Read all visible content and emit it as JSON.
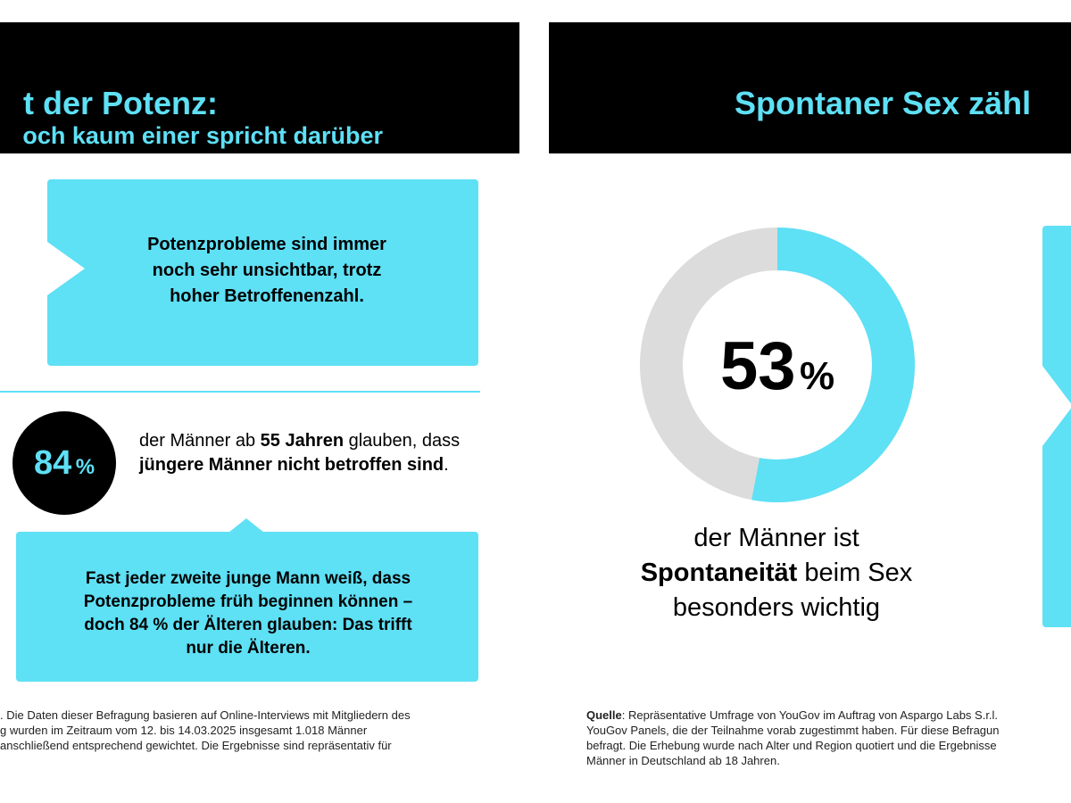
{
  "colors": {
    "accent": "#5ee0f5",
    "banner": "#000000",
    "donut_rest": "#dcdcdc"
  },
  "left_panel": {
    "title": "t der Potenz:",
    "subtitle": "och kaum einer spricht darüber",
    "callout_box": {
      "lines": [
        "Potenzprobleme sind immer",
        "noch sehr unsichtbar, trotz",
        "hoher Betroffenenzahl."
      ]
    },
    "stat": {
      "value": "84",
      "unit": "%",
      "text_parts": [
        "der Männer ab ",
        "55 Jahren",
        " glauben, dass ",
        "jüngere Männer nicht betroffen sind",
        "."
      ]
    },
    "speech_box": {
      "lines": [
        "Fast jeder zweite junge Mann weiß, dass",
        "Potenzprobleme früh beginnen können –",
        "doch 84 % der Älteren glauben: Das trifft",
        "nur die Älteren."
      ]
    },
    "source_lines": [
      ". Die Daten dieser Befragung basieren auf Online-Interviews mit Mitgliedern des",
      "g wurden im Zeitraum vom 12. bis 14.03.2025 insgesamt 1.018 Männer",
      "anschließend entsprechend gewichtet. Die Ergebnisse sind repräsentativ für"
    ]
  },
  "right_panel": {
    "title": "Spontaner Sex zähl",
    "donut": {
      "value": "53",
      "unit": "%",
      "fraction": 0.53
    },
    "caption_parts": [
      "der Männer ist",
      "Spontaneität",
      " beim Sex",
      "besonders wichtig"
    ],
    "source": {
      "label": "Quelle",
      "lines": [
        ": Repräsentative Umfrage von YouGov im Auftrag von Aspargo Labs S.r.l.",
        "YouGov Panels, die der Teilnahme vorab zugestimmt haben. Für diese Befragun",
        "befragt. Die Erhebung wurde nach Alter und Region quotiert und die Ergebnisse",
        "Männer in Deutschland ab 18 Jahren."
      ]
    }
  }
}
